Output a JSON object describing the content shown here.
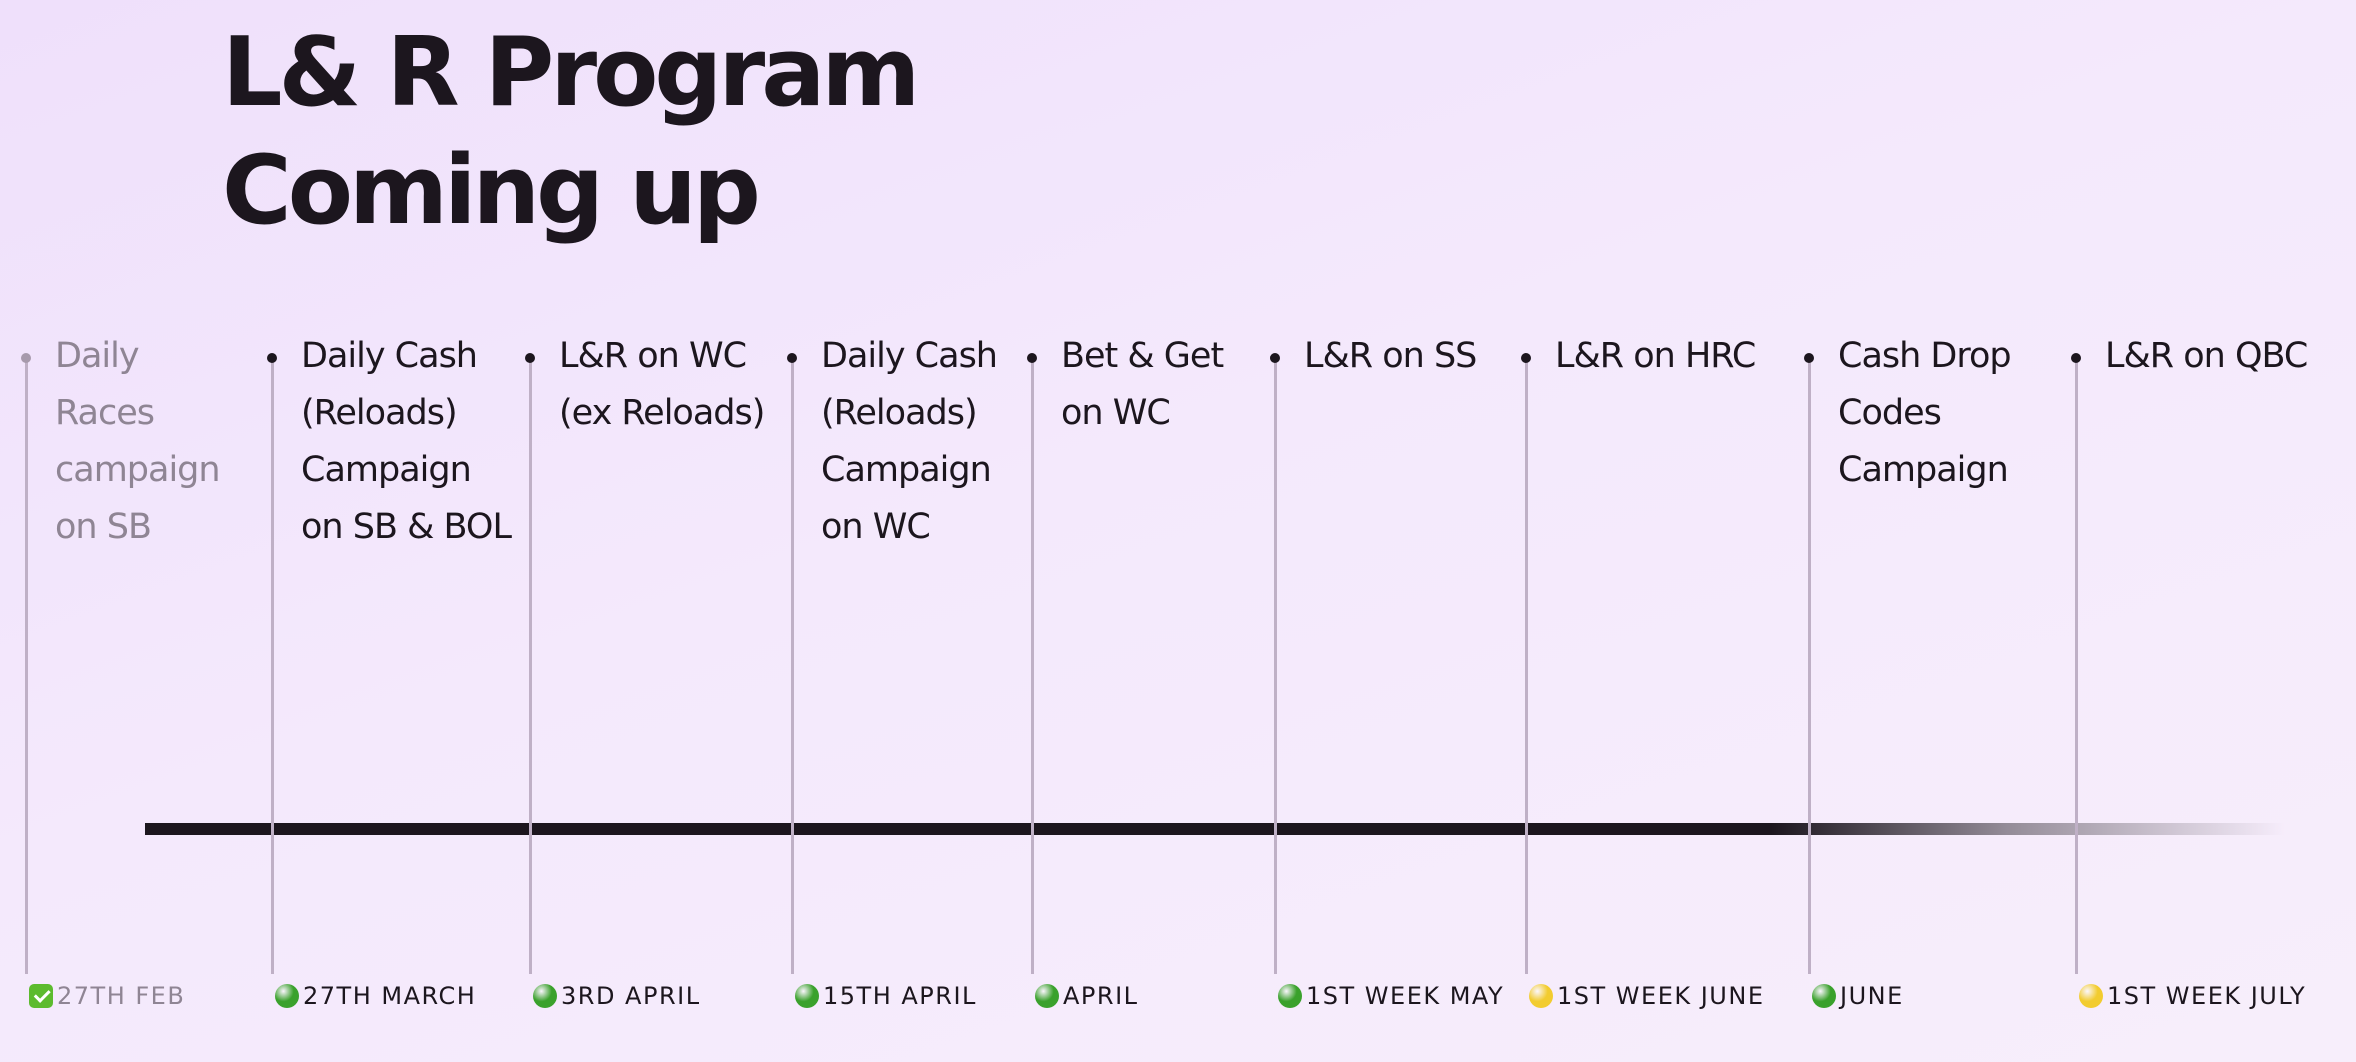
{
  "title": {
    "line1": "L& R Program",
    "line2": "Coming up"
  },
  "colors": {
    "done": "#5cbb2e",
    "confirmed": "#3aa12c",
    "tentative": "#f2cc2f",
    "axis": "#1c161e",
    "connector": "#bfb0c6"
  },
  "milestones": [
    {
      "label_lines": [
        "Daily",
        "Races",
        "campaign",
        "on SB"
      ],
      "date": "27TH FEB",
      "status": "done",
      "icon": "check-box-icon"
    },
    {
      "label_lines": [
        "Daily Cash",
        "(Reloads)",
        "Campaign",
        "on SB & BOL"
      ],
      "date": "27TH MARCH",
      "status": "confirmed",
      "icon": "green-circle-icon"
    },
    {
      "label_lines": [
        "L&R on WC",
        "(ex Reloads)"
      ],
      "date": "3RD APRIL",
      "status": "confirmed",
      "icon": "green-circle-icon"
    },
    {
      "label_lines": [
        "Daily Cash",
        "(Reloads)",
        "Campaign",
        "on WC"
      ],
      "date": "15TH APRIL",
      "status": "confirmed",
      "icon": "green-circle-icon"
    },
    {
      "label_lines": [
        "Bet & Get",
        "on WC"
      ],
      "date": "APRIL",
      "status": "confirmed",
      "icon": "green-circle-icon"
    },
    {
      "label_lines": [
        "L&R on SS"
      ],
      "date": "1ST WEEK MAY",
      "status": "confirmed",
      "icon": "green-circle-icon"
    },
    {
      "label_lines": [
        "L&R on HRC"
      ],
      "date": "1ST WEEK JUNE",
      "status": "tentative",
      "icon": "yellow-circle-icon"
    },
    {
      "label_lines": [
        "Cash Drop",
        "Codes",
        "Campaign"
      ],
      "date": "JUNE",
      "status": "confirmed",
      "icon": "green-circle-icon"
    },
    {
      "label_lines": [
        "L&R on QBC"
      ],
      "date": "1ST WEEK JULY",
      "status": "tentative",
      "icon": "yellow-circle-icon"
    }
  ]
}
